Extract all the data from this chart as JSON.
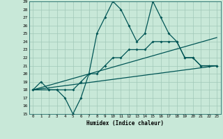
{
  "xlabel": "Humidex (Indice chaleur)",
  "bg_color": "#c8e8d8",
  "grid_color": "#a0c8b8",
  "line_color": "#005555",
  "xlim": [
    -0.5,
    23.5
  ],
  "ylim": [
    15,
    29
  ],
  "xticks": [
    0,
    1,
    2,
    3,
    4,
    5,
    6,
    7,
    8,
    9,
    10,
    11,
    12,
    13,
    14,
    15,
    16,
    17,
    18,
    19,
    20,
    21,
    22,
    23
  ],
  "yticks": [
    15,
    16,
    17,
    18,
    19,
    20,
    21,
    22,
    23,
    24,
    25,
    26,
    27,
    28,
    29
  ],
  "line1_x": [
    0,
    1,
    2,
    3,
    4,
    5,
    6,
    7,
    8,
    9,
    10,
    11,
    12,
    13,
    14,
    15,
    16,
    17,
    18,
    19,
    20,
    21,
    22,
    23
  ],
  "line1_y": [
    18,
    19,
    18,
    18,
    17,
    15,
    17,
    20,
    25,
    27,
    29,
    28,
    26,
    24,
    25,
    29,
    27,
    25,
    24,
    22,
    22,
    21,
    21,
    21
  ],
  "line2_x": [
    0,
    2,
    3,
    4,
    5,
    6,
    7,
    8,
    9,
    10,
    11,
    12,
    13,
    14,
    15,
    16,
    17,
    18,
    19,
    20,
    21,
    22,
    23
  ],
  "line2_y": [
    18,
    18,
    18,
    18,
    18,
    19,
    20,
    20,
    21,
    22,
    22,
    23,
    23,
    23,
    24,
    24,
    24,
    24,
    22,
    22,
    21,
    21,
    21
  ],
  "line3_x": [
    0,
    23
  ],
  "line3_y": [
    18,
    24.5
  ],
  "line4_x": [
    0,
    23
  ],
  "line4_y": [
    18,
    21
  ]
}
